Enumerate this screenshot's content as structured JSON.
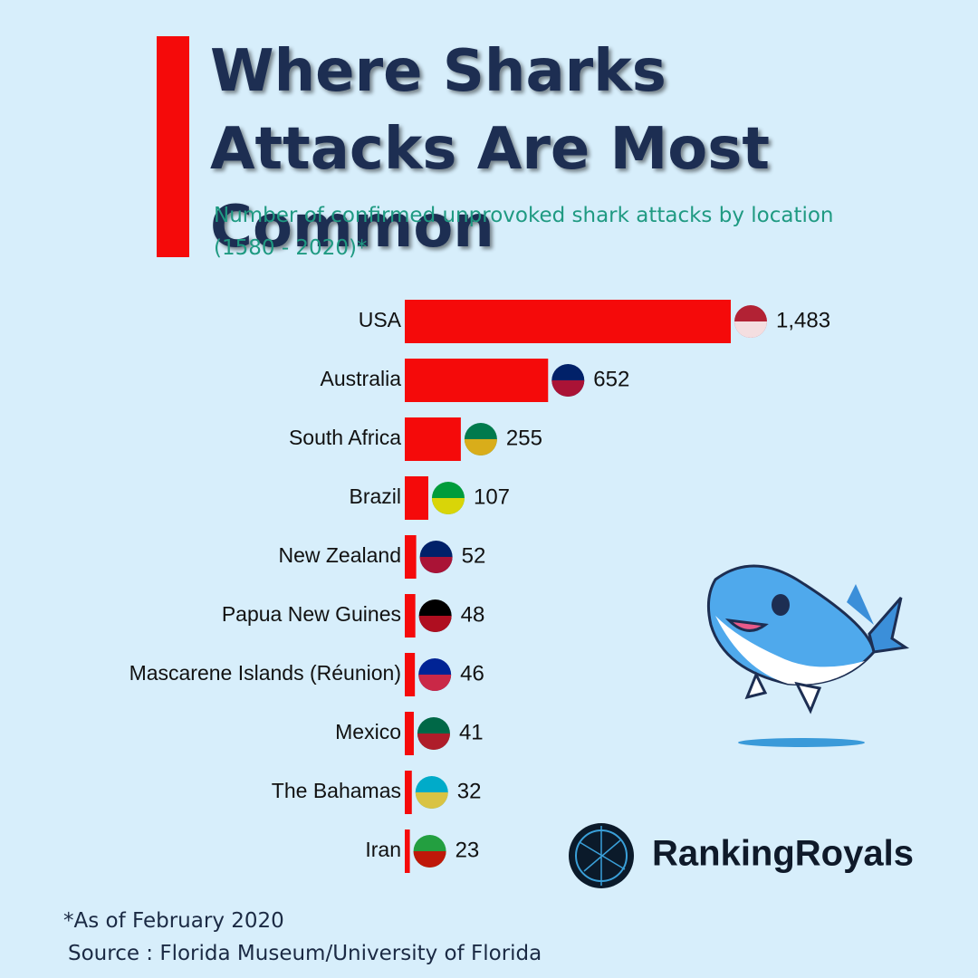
{
  "chart_data": {
    "type": "bar",
    "orientation": "horizontal",
    "title": "Where Sharks Attacks Are Most Common",
    "subtitle": "Number of confirmed unprovoked shark attacks by location (1580 - 2020)*",
    "categories": [
      "USA",
      "Australia",
      "South Africa",
      "Brazil",
      "New Zealand",
      "Papua New Guines",
      "Mascarene Islands (Réunion)",
      "Mexico",
      "The Bahamas",
      "Iran"
    ],
    "values": [
      1483,
      652,
      255,
      107,
      52,
      48,
      46,
      41,
      32,
      23
    ],
    "value_labels": [
      "1,483",
      "652",
      "255",
      "107",
      "52",
      "48",
      "46",
      "41",
      "32",
      "23"
    ],
    "color": "#f50a0a",
    "footnote": "*As of February 2020",
    "source": "Source : Florida Museum/University of Florida",
    "brand": "RankingRoyals"
  }
}
